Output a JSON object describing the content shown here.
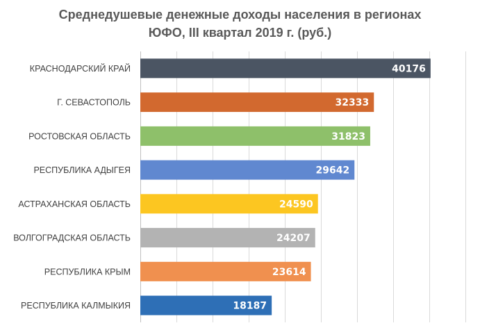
{
  "chart_data": {
    "type": "bar",
    "orientation": "horizontal",
    "title_lines": [
      "Среднедушевые денежные доходы населения в регионах",
      "ЮФО, III квартал 2019 г. (руб.)"
    ],
    "categories": [
      "КРАСНОДАРСКИЙ КРАЙ",
      "Г. СЕВАСТОПОЛЬ",
      "РОСТОВСКАЯ ОБЛАСТЬ",
      "РЕСПУБЛИКА АДЫГЕЯ",
      "АСТРАХАНСКАЯ ОБЛАСТЬ",
      "ВОЛГОГРАДСКАЯ ОБЛАСТЬ",
      "РЕСПУБЛИКА КРЫМ",
      "РЕСПУБЛИКА КАЛМЫКИЯ"
    ],
    "values": [
      40176,
      32333,
      31823,
      29642,
      24590,
      24207,
      23614,
      18187
    ],
    "colors": [
      "#4b5563",
      "#d2692f",
      "#8ec06a",
      "#6088d0",
      "#fcc621",
      "#b3b3b3",
      "#f0904f",
      "#2e6fb6"
    ],
    "xlim": [
      0,
      45000
    ],
    "xgrid_step": 5000,
    "grid": true,
    "legend": false
  }
}
